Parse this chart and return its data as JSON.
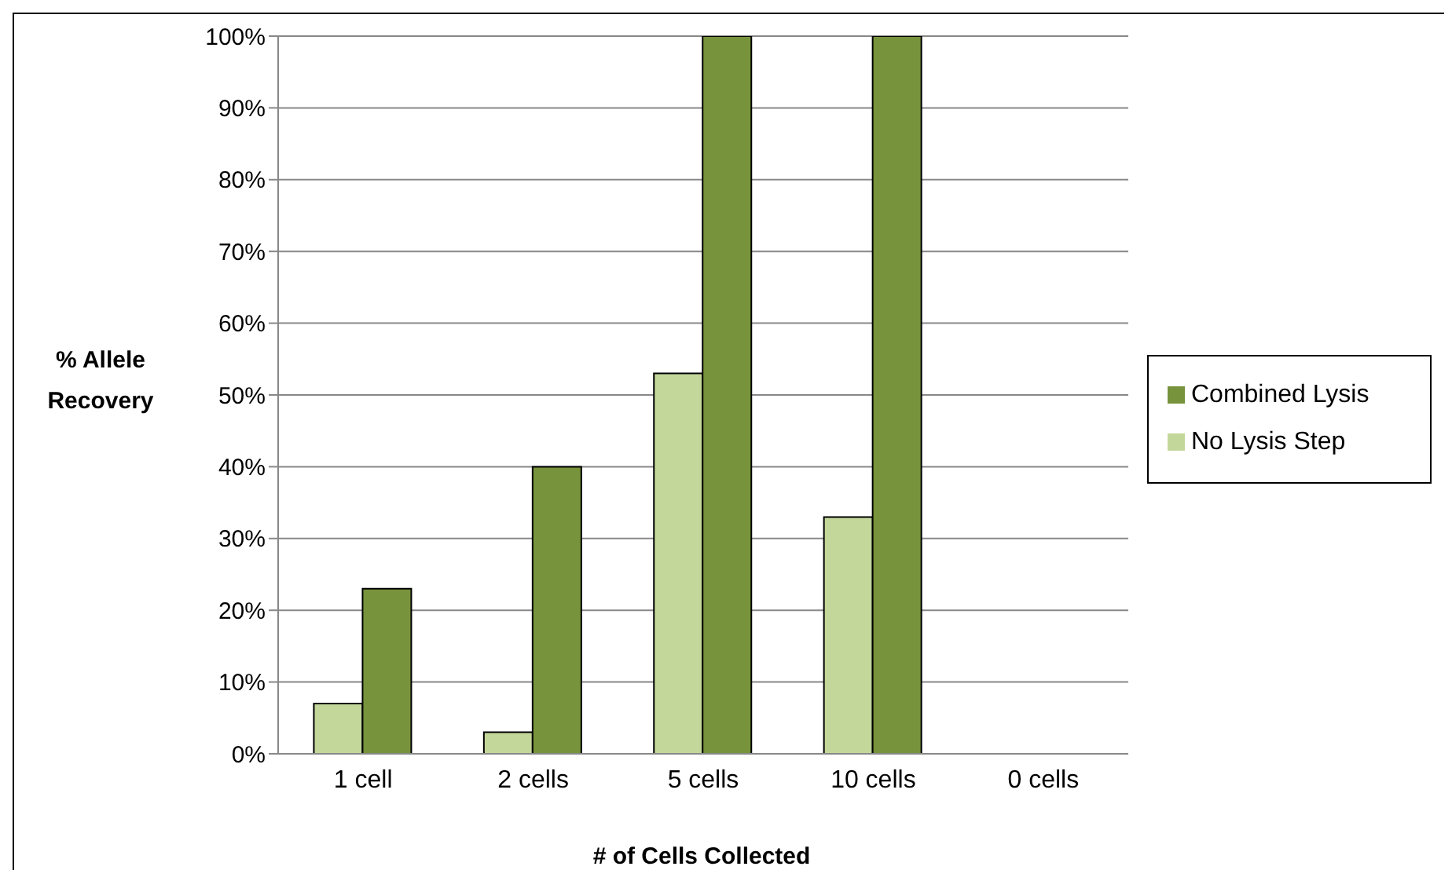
{
  "chart_data": {
    "type": "bar",
    "xlabel": "# of Cells Collected",
    "ylabel": "% Allele Recovery",
    "categories": [
      "1 cell",
      "2 cells",
      "5 cells",
      "10 cells",
      "0 cells"
    ],
    "series": [
      {
        "name": "No Lysis Step",
        "color": "#c4d79b",
        "values": [
          7,
          3,
          53,
          33,
          0
        ]
      },
      {
        "name": "Combined Lysis",
        "color": "#77933c",
        "values": [
          23,
          40,
          100,
          100,
          0
        ]
      }
    ],
    "ylim": [
      0,
      100
    ],
    "yticks": [
      {
        "value": 0,
        "label": "0%"
      },
      {
        "value": 10,
        "label": "10%"
      },
      {
        "value": 20,
        "label": "20%"
      },
      {
        "value": 30,
        "label": "30%"
      },
      {
        "value": 40,
        "label": "40%"
      },
      {
        "value": 50,
        "label": "50%"
      },
      {
        "value": 60,
        "label": "60%"
      },
      {
        "value": 70,
        "label": "70%"
      },
      {
        "value": 80,
        "label": "80%"
      },
      {
        "value": 90,
        "label": "90%"
      },
      {
        "value": 100,
        "label": "100%"
      }
    ],
    "grid": "y",
    "legend": "right"
  }
}
